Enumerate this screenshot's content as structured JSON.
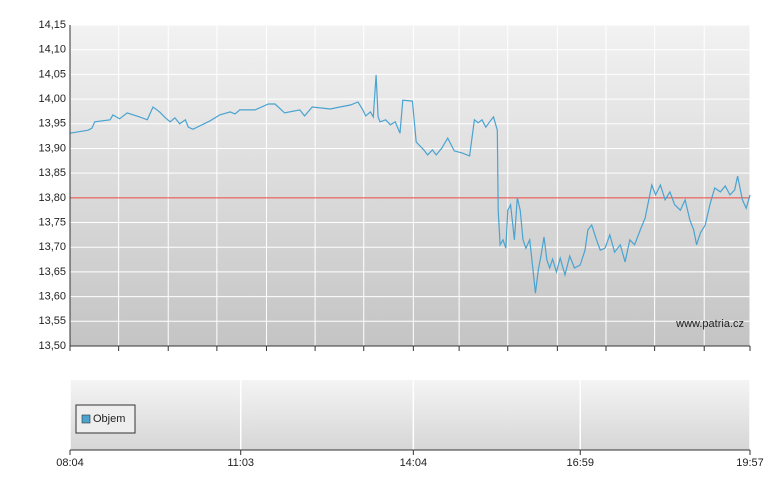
{
  "chart_data": [
    {
      "type": "line",
      "color": "#4aa3d0",
      "x": [
        484,
        503,
        507,
        510,
        526,
        529,
        536,
        544,
        557,
        565,
        571,
        578,
        584,
        589,
        594,
        599,
        605,
        608,
        613,
        631,
        641,
        652,
        657,
        662,
        678,
        692,
        699,
        709,
        725,
        730,
        738,
        757,
        767,
        778,
        786,
        791,
        794,
        799,
        802,
        805,
        807,
        809,
        815,
        820,
        825,
        830,
        833,
        843,
        847,
        855,
        859,
        864,
        868,
        874,
        880,
        887,
        895,
        903,
        908,
        912,
        916,
        920,
        924,
        928,
        932,
        933,
        935,
        938,
        941,
        943,
        946,
        950,
        953,
        956,
        959,
        962,
        966,
        969,
        972,
        975,
        978,
        981,
        984,
        987,
        990,
        994,
        998,
        1003,
        1008,
        1013,
        1019,
        1024,
        1027,
        1031,
        1036,
        1040,
        1045,
        1050,
        1055,
        1061,
        1066,
        1071,
        1076,
        1082,
        1087,
        1090,
        1094,
        1098,
        1103,
        1108,
        1113,
        1118,
        1124,
        1129,
        1134,
        1138,
        1141,
        1145,
        1150,
        1155,
        1160,
        1166,
        1171,
        1176,
        1181,
        1184,
        1189,
        1193,
        1197
      ],
      "values": [
        13.931,
        13.937,
        13.941,
        13.954,
        13.958,
        13.968,
        13.96,
        13.972,
        13.964,
        13.958,
        13.984,
        13.974,
        13.962,
        13.954,
        13.962,
        13.95,
        13.958,
        13.943,
        13.939,
        13.956,
        13.968,
        13.974,
        13.97,
        13.978,
        13.978,
        13.99,
        13.99,
        13.972,
        13.978,
        13.966,
        13.984,
        13.98,
        13.984,
        13.988,
        13.994,
        13.978,
        13.966,
        13.974,
        13.964,
        14.049,
        13.964,
        13.954,
        13.958,
        13.948,
        13.954,
        13.931,
        13.998,
        13.996,
        13.913,
        13.897,
        13.887,
        13.897,
        13.887,
        13.901,
        13.921,
        13.895,
        13.891,
        13.885,
        13.958,
        13.952,
        13.958,
        13.943,
        13.954,
        13.964,
        13.937,
        13.775,
        13.705,
        13.715,
        13.698,
        13.775,
        13.786,
        13.715,
        13.8,
        13.775,
        13.715,
        13.698,
        13.715,
        13.662,
        13.607,
        13.654,
        13.684,
        13.721,
        13.674,
        13.658,
        13.676,
        13.65,
        13.678,
        13.644,
        13.682,
        13.658,
        13.664,
        13.694,
        13.735,
        13.745,
        13.715,
        13.694,
        13.698,
        13.725,
        13.69,
        13.705,
        13.67,
        13.715,
        13.705,
        13.735,
        13.759,
        13.788,
        13.826,
        13.806,
        13.826,
        13.796,
        13.812,
        13.786,
        13.775,
        13.796,
        13.755,
        13.735,
        13.705,
        13.729,
        13.745,
        13.786,
        13.82,
        13.812,
        13.824,
        13.806,
        13.816,
        13.844,
        13.796,
        13.779,
        13.806
      ],
      "xlim": [
        484,
        1197
      ],
      "xgrid": [
        484,
        535,
        587,
        638,
        690,
        741,
        792,
        844,
        892,
        943,
        995,
        1046,
        1097,
        1149,
        1197
      ],
      "ylim": [
        13.5,
        14.15
      ],
      "yticks": [
        {
          "value": 13.5,
          "label": "13,50"
        },
        {
          "value": 13.55,
          "label": "13,55"
        },
        {
          "value": 13.6,
          "label": "13,60"
        },
        {
          "value": 13.65,
          "label": "13,65"
        },
        {
          "value": 13.7,
          "label": "13,70"
        },
        {
          "value": 13.75,
          "label": "13,75"
        },
        {
          "value": 13.8,
          "label": "13,80"
        },
        {
          "value": 13.85,
          "label": "13,85"
        },
        {
          "value": 13.9,
          "label": "13,90"
        },
        {
          "value": 13.95,
          "label": "13,95"
        },
        {
          "value": 14.0,
          "label": "14,00"
        },
        {
          "value": 14.05,
          "label": "14,05"
        },
        {
          "value": 14.1,
          "label": "14,10"
        },
        {
          "value": 14.15,
          "label": "14,15"
        }
      ],
      "reference_line": {
        "value": 13.8,
        "color": "#e8413a"
      },
      "annotation": "www.patria.cz",
      "grid": true
    },
    {
      "type": "bar",
      "series": [
        {
          "name": "Objem",
          "color": "#4aa3d0",
          "values": []
        }
      ],
      "xlim": [
        484,
        1197
      ],
      "xticks": [
        {
          "value": 484,
          "label": "08:04"
        },
        {
          "value": 663,
          "label": "11:03"
        },
        {
          "value": 844,
          "label": "14:04"
        },
        {
          "value": 1019,
          "label": "16:59"
        },
        {
          "value": 1197,
          "label": "19:57"
        }
      ],
      "grid": true,
      "legend": "upper-left"
    }
  ]
}
